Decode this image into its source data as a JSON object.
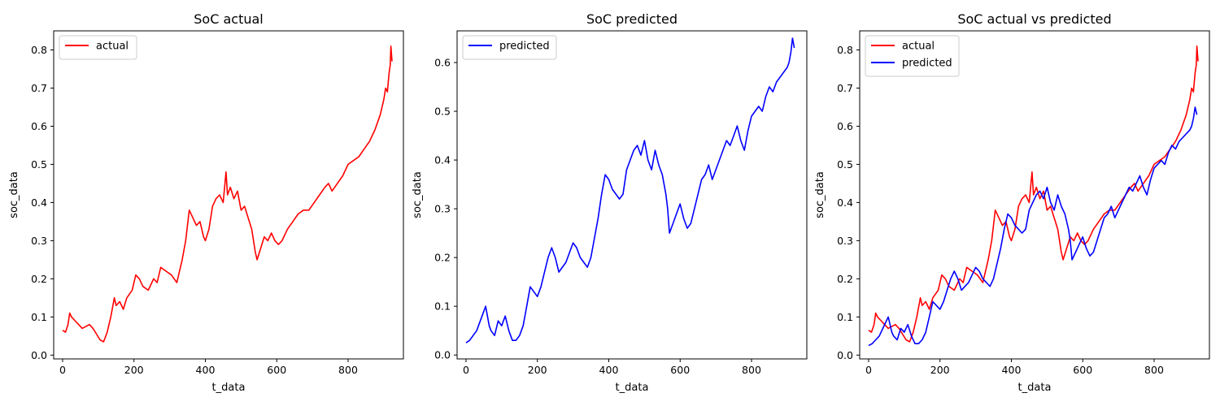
{
  "chart_data": [
    {
      "type": "line",
      "title": "SoC actual",
      "xlabel": "t_data",
      "ylabel": "soc_data",
      "xlim": [
        -25,
        955
      ],
      "ylim": [
        -0.01,
        0.85
      ],
      "xticks": [
        0,
        200,
        400,
        600,
        800
      ],
      "yticks": [
        0.0,
        0.1,
        0.2,
        0.3,
        0.4,
        0.5,
        0.6,
        0.7,
        0.8
      ],
      "legend": "top-left",
      "grid": false,
      "series": [
        {
          "name": "actual",
          "color": "#ff0000",
          "x": [
            0,
            8,
            15,
            20,
            25,
            35,
            45,
            55,
            65,
            75,
            85,
            95,
            105,
            115,
            125,
            135,
            145,
            150,
            160,
            170,
            180,
            195,
            205,
            215,
            225,
            240,
            255,
            265,
            275,
            290,
            305,
            320,
            335,
            345,
            355,
            365,
            375,
            385,
            395,
            400,
            410,
            420,
            430,
            440,
            450,
            458,
            462,
            470,
            480,
            490,
            500,
            510,
            520,
            530,
            540,
            545,
            555,
            565,
            575,
            585,
            595,
            605,
            615,
            630,
            645,
            660,
            675,
            690,
            705,
            720,
            735,
            745,
            755,
            770,
            785,
            800,
            815,
            830,
            845,
            860,
            875,
            890,
            900,
            905,
            910,
            915,
            918,
            920,
            923
          ],
          "y": [
            0.065,
            0.06,
            0.08,
            0.11,
            0.1,
            0.09,
            0.08,
            0.07,
            0.075,
            0.08,
            0.07,
            0.055,
            0.04,
            0.035,
            0.06,
            0.1,
            0.15,
            0.13,
            0.14,
            0.12,
            0.15,
            0.17,
            0.21,
            0.2,
            0.18,
            0.17,
            0.2,
            0.19,
            0.23,
            0.22,
            0.21,
            0.19,
            0.25,
            0.3,
            0.38,
            0.36,
            0.34,
            0.35,
            0.31,
            0.3,
            0.33,
            0.39,
            0.41,
            0.42,
            0.4,
            0.48,
            0.42,
            0.44,
            0.41,
            0.43,
            0.38,
            0.39,
            0.36,
            0.33,
            0.27,
            0.25,
            0.28,
            0.31,
            0.3,
            0.32,
            0.3,
            0.29,
            0.3,
            0.33,
            0.35,
            0.37,
            0.38,
            0.38,
            0.4,
            0.42,
            0.44,
            0.45,
            0.43,
            0.45,
            0.47,
            0.5,
            0.51,
            0.52,
            0.54,
            0.56,
            0.59,
            0.63,
            0.67,
            0.7,
            0.69,
            0.74,
            0.76,
            0.81,
            0.77
          ]
        }
      ]
    },
    {
      "type": "line",
      "title": "SoC predicted",
      "xlabel": "t_data",
      "ylabel": "soc_data",
      "xlim": [
        -25,
        955
      ],
      "ylim": [
        -0.008,
        0.665
      ],
      "xticks": [
        0,
        200,
        400,
        600,
        800
      ],
      "yticks": [
        0.0,
        0.1,
        0.2,
        0.3,
        0.4,
        0.5,
        0.6
      ],
      "legend": "top-left",
      "grid": false,
      "series": [
        {
          "name": "predicted",
          "color": "#0000ff",
          "x": [
            0,
            10,
            20,
            30,
            40,
            50,
            55,
            60,
            65,
            70,
            80,
            90,
            100,
            110,
            120,
            130,
            140,
            150,
            160,
            170,
            180,
            190,
            200,
            210,
            220,
            230,
            240,
            250,
            260,
            270,
            280,
            290,
            300,
            310,
            320,
            330,
            340,
            350,
            360,
            370,
            380,
            390,
            400,
            410,
            420,
            430,
            440,
            450,
            460,
            470,
            480,
            490,
            500,
            510,
            520,
            530,
            540,
            550,
            560,
            565,
            570,
            580,
            590,
            600,
            610,
            620,
            630,
            640,
            650,
            660,
            670,
            680,
            690,
            700,
            710,
            720,
            730,
            740,
            750,
            760,
            770,
            780,
            790,
            800,
            810,
            820,
            830,
            840,
            850,
            860,
            870,
            880,
            890,
            900,
            905,
            910,
            915,
            920
          ],
          "y": [
            0.025,
            0.03,
            0.04,
            0.05,
            0.07,
            0.09,
            0.1,
            0.08,
            0.06,
            0.05,
            0.04,
            0.07,
            0.06,
            0.08,
            0.05,
            0.03,
            0.03,
            0.04,
            0.06,
            0.1,
            0.14,
            0.13,
            0.12,
            0.14,
            0.17,
            0.2,
            0.22,
            0.2,
            0.17,
            0.18,
            0.19,
            0.21,
            0.23,
            0.22,
            0.2,
            0.19,
            0.18,
            0.2,
            0.24,
            0.28,
            0.33,
            0.37,
            0.36,
            0.34,
            0.33,
            0.32,
            0.33,
            0.38,
            0.4,
            0.42,
            0.43,
            0.41,
            0.44,
            0.4,
            0.38,
            0.42,
            0.39,
            0.37,
            0.33,
            0.3,
            0.25,
            0.27,
            0.29,
            0.31,
            0.28,
            0.26,
            0.27,
            0.3,
            0.33,
            0.36,
            0.37,
            0.39,
            0.36,
            0.38,
            0.4,
            0.42,
            0.44,
            0.43,
            0.45,
            0.47,
            0.44,
            0.42,
            0.46,
            0.49,
            0.5,
            0.51,
            0.5,
            0.53,
            0.55,
            0.54,
            0.56,
            0.57,
            0.58,
            0.59,
            0.6,
            0.62,
            0.65,
            0.63
          ]
        }
      ]
    },
    {
      "type": "line",
      "title": "SoC actual vs predicted",
      "xlabel": "t_data",
      "ylabel": "soc_data",
      "xlim": [
        -25,
        955
      ],
      "ylim": [
        -0.01,
        0.85
      ],
      "xticks": [
        0,
        200,
        400,
        600,
        800
      ],
      "yticks": [
        0.0,
        0.1,
        0.2,
        0.3,
        0.4,
        0.5,
        0.6,
        0.7,
        0.8
      ],
      "legend": "top-left",
      "grid": false,
      "series": [
        {
          "name": "actual",
          "color": "#ff0000",
          "x": [
            0,
            8,
            15,
            20,
            25,
            35,
            45,
            55,
            65,
            75,
            85,
            95,
            105,
            115,
            125,
            135,
            145,
            150,
            160,
            170,
            180,
            195,
            205,
            215,
            225,
            240,
            255,
            265,
            275,
            290,
            305,
            320,
            335,
            345,
            355,
            365,
            375,
            385,
            395,
            400,
            410,
            420,
            430,
            440,
            450,
            458,
            462,
            470,
            480,
            490,
            500,
            510,
            520,
            530,
            540,
            545,
            555,
            565,
            575,
            585,
            595,
            605,
            615,
            630,
            645,
            660,
            675,
            690,
            705,
            720,
            735,
            745,
            755,
            770,
            785,
            800,
            815,
            830,
            845,
            860,
            875,
            890,
            900,
            905,
            910,
            915,
            918,
            920,
            923
          ],
          "y": [
            0.065,
            0.06,
            0.08,
            0.11,
            0.1,
            0.09,
            0.08,
            0.07,
            0.075,
            0.08,
            0.07,
            0.055,
            0.04,
            0.035,
            0.06,
            0.1,
            0.15,
            0.13,
            0.14,
            0.12,
            0.15,
            0.17,
            0.21,
            0.2,
            0.18,
            0.17,
            0.2,
            0.19,
            0.23,
            0.22,
            0.21,
            0.19,
            0.25,
            0.3,
            0.38,
            0.36,
            0.34,
            0.35,
            0.31,
            0.3,
            0.33,
            0.39,
            0.41,
            0.42,
            0.4,
            0.48,
            0.42,
            0.44,
            0.41,
            0.43,
            0.38,
            0.39,
            0.36,
            0.33,
            0.27,
            0.25,
            0.28,
            0.31,
            0.3,
            0.32,
            0.3,
            0.29,
            0.3,
            0.33,
            0.35,
            0.37,
            0.38,
            0.38,
            0.4,
            0.42,
            0.44,
            0.45,
            0.43,
            0.45,
            0.47,
            0.5,
            0.51,
            0.52,
            0.54,
            0.56,
            0.59,
            0.63,
            0.67,
            0.7,
            0.69,
            0.74,
            0.76,
            0.81,
            0.77
          ]
        },
        {
          "name": "predicted",
          "color": "#0000ff",
          "x": [
            0,
            10,
            20,
            30,
            40,
            50,
            55,
            60,
            65,
            70,
            80,
            90,
            100,
            110,
            120,
            130,
            140,
            150,
            160,
            170,
            180,
            190,
            200,
            210,
            220,
            230,
            240,
            250,
            260,
            270,
            280,
            290,
            300,
            310,
            320,
            330,
            340,
            350,
            360,
            370,
            380,
            390,
            400,
            410,
            420,
            430,
            440,
            450,
            460,
            470,
            480,
            490,
            500,
            510,
            520,
            530,
            540,
            550,
            560,
            565,
            570,
            580,
            590,
            600,
            610,
            620,
            630,
            640,
            650,
            660,
            670,
            680,
            690,
            700,
            710,
            720,
            730,
            740,
            750,
            760,
            770,
            780,
            790,
            800,
            810,
            820,
            830,
            840,
            850,
            860,
            870,
            880,
            890,
            900,
            905,
            910,
            915,
            920
          ],
          "y": [
            0.025,
            0.03,
            0.04,
            0.05,
            0.07,
            0.09,
            0.1,
            0.08,
            0.06,
            0.05,
            0.04,
            0.07,
            0.06,
            0.08,
            0.05,
            0.03,
            0.03,
            0.04,
            0.06,
            0.1,
            0.14,
            0.13,
            0.12,
            0.14,
            0.17,
            0.2,
            0.22,
            0.2,
            0.17,
            0.18,
            0.19,
            0.21,
            0.23,
            0.22,
            0.2,
            0.19,
            0.18,
            0.2,
            0.24,
            0.28,
            0.33,
            0.37,
            0.36,
            0.34,
            0.33,
            0.32,
            0.33,
            0.38,
            0.4,
            0.42,
            0.43,
            0.41,
            0.44,
            0.4,
            0.38,
            0.42,
            0.39,
            0.37,
            0.33,
            0.3,
            0.25,
            0.27,
            0.29,
            0.31,
            0.28,
            0.26,
            0.27,
            0.3,
            0.33,
            0.36,
            0.37,
            0.39,
            0.36,
            0.38,
            0.4,
            0.42,
            0.44,
            0.43,
            0.45,
            0.47,
            0.44,
            0.42,
            0.46,
            0.49,
            0.5,
            0.51,
            0.5,
            0.53,
            0.55,
            0.54,
            0.56,
            0.57,
            0.58,
            0.59,
            0.6,
            0.62,
            0.65,
            0.63
          ]
        }
      ]
    }
  ]
}
